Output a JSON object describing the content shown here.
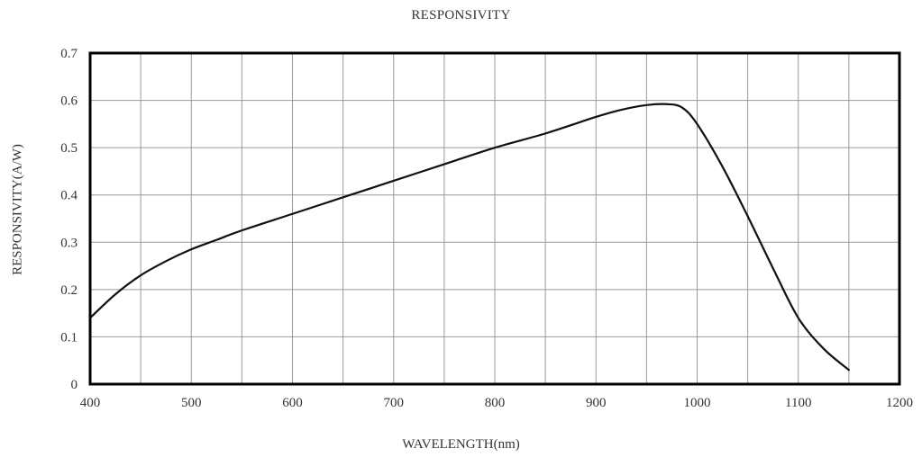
{
  "chart_data": {
    "type": "line",
    "title": "RESPONSIVITY",
    "xlabel": "WAVELENGTH(nm)",
    "ylabel": "RESPONSIVITY(A/W)",
    "xlim": [
      400,
      1200
    ],
    "ylim": [
      0,
      0.7
    ],
    "xticks": [
      400,
      500,
      600,
      700,
      800,
      900,
      1000,
      1100,
      1200
    ],
    "yticks": [
      0,
      0.1,
      0.2,
      0.3,
      0.4,
      0.5,
      0.6,
      0.7
    ],
    "ytick_labels": [
      "0",
      "0.1",
      "0.2",
      "0.3",
      "0.4",
      "0.5",
      "0.6",
      "0.7"
    ],
    "grid": true,
    "line_color": "#111111",
    "series": [
      {
        "x": [
          400,
          425,
          450,
          475,
          500,
          525,
          550,
          600,
          650,
          700,
          750,
          800,
          850,
          900,
          925,
          950,
          970,
          985,
          1000,
          1025,
          1050,
          1075,
          1100,
          1125,
          1150
        ],
        "y": [
          0.14,
          0.19,
          0.23,
          0.26,
          0.285,
          0.305,
          0.325,
          0.36,
          0.395,
          0.43,
          0.465,
          0.5,
          0.53,
          0.565,
          0.58,
          0.59,
          0.592,
          0.585,
          0.55,
          0.46,
          0.355,
          0.245,
          0.14,
          0.075,
          0.03
        ]
      }
    ]
  }
}
